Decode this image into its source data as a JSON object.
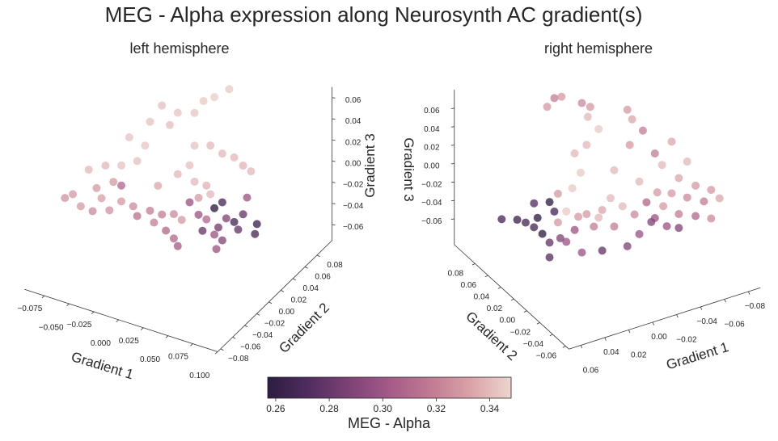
{
  "title": "MEG - Alpha expression along Neurosynth AC gradient(s)",
  "chart_data": [
    {
      "type": "scatter3d",
      "title": "left hemisphere",
      "xlabel": "Gradient 1",
      "ylabel": "Gradient 2",
      "zlabel": "Gradient 3",
      "x_ticks": [
        "−0.075",
        "−0.050",
        "−0.025",
        "0.000",
        "0.025",
        "0.050",
        "0.075",
        "0.100"
      ],
      "x_tick_values": [
        -0.075,
        -0.05,
        -0.025,
        0,
        0.025,
        0.05,
        0.075,
        0.1
      ],
      "y_ticks": [
        "−0.08",
        "−0.06",
        "−0.04",
        "−0.02",
        "0.00",
        "0.02",
        "0.04",
        "0.06",
        "0.08"
      ],
      "y_tick_values": [
        -0.08,
        -0.06,
        -0.04,
        -0.02,
        0,
        0.02,
        0.04,
        0.06,
        0.08
      ],
      "z_ticks": [
        "−0.06",
        "−0.04",
        "−0.02",
        "0.00",
        "0.02",
        "0.04",
        "0.06"
      ],
      "z_tick_values": [
        -0.06,
        -0.04,
        -0.02,
        0,
        0.02,
        0.04,
        0.06
      ],
      "xlim": [
        -0.095,
        0.1
      ],
      "ylim": [
        -0.085,
        0.105
      ],
      "zlim": [
        -0.075,
        0.07
      ],
      "point_fields": [
        "gradient1",
        "gradient2",
        "gradient3",
        "meg_alpha"
      ],
      "points": [
        [
          0.06,
          0,
          0.114,
          0.345
        ],
        [
          0.045,
          0,
          0.102,
          0.346
        ],
        [
          0.034,
          0,
          0.095,
          0.345
        ],
        [
          0.025,
          0,
          0.081,
          0.344
        ],
        [
          0.008,
          0,
          0.076,
          0.343
        ],
        [
          -0.008,
          0,
          0.078,
          0.342
        ],
        [
          -0.02,
          0,
          0.059,
          0.343
        ],
        [
          0,
          0,
          0.062,
          0.342
        ],
        [
          -0.025,
          0,
          0.035,
          0.344
        ],
        [
          -0.041,
          0,
          0.038,
          0.343
        ],
        [
          -0.033,
          0,
          0.018,
          0.342
        ],
        [
          -0.049,
          0,
          0.009,
          0.343
        ],
        [
          0.025,
          0,
          0.05,
          0.343
        ],
        [
          0.041,
          0,
          0.055,
          0.341
        ],
        [
          0.053,
          0,
          0.051,
          0.34
        ],
        [
          0.065,
          0,
          0.051,
          0.34
        ],
        [
          0.074,
          0,
          0.046,
          0.339
        ],
        [
          0.02,
          0,
          0.03,
          0.342
        ],
        [
          0.008,
          0,
          0.018,
          0.34
        ],
        [
          0.037,
          0,
          0.016,
          0.338
        ],
        [
          -0.065,
          0,
          0.004,
          0.34
        ],
        [
          -0.082,
          0,
          -0.005,
          0.34
        ],
        [
          -0.057,
          0,
          -0.009,
          0.33
        ],
        [
          -0.069,
          0,
          -0.028,
          0.332
        ],
        [
          -0.098,
          0,
          -0.033,
          0.33
        ],
        [
          -0.106,
          0,
          -0.039,
          0.328
        ],
        [
          -0.09,
          0,
          -0.042,
          0.33
        ],
        [
          -0.078,
          0,
          -0.043,
          0.325
        ],
        [
          -0.061,
          0,
          -0.037,
          0.328
        ],
        [
          -0.049,
          0,
          -0.025,
          0.33
        ],
        [
          -0.037,
          0,
          -0.026,
          0.325
        ],
        [
          -0.02,
          0,
          -0.025,
          0.32
        ],
        [
          -0.008,
          0,
          -0.025,
          0.32
        ],
        [
          0.004,
          0,
          -0.021,
          0.325
        ],
        [
          0.012,
          0,
          -0.024,
          0.33
        ],
        [
          -0.016,
          0,
          -0.035,
          0.32
        ],
        [
          -0.033,
          0,
          -0.034,
          0.315
        ],
        [
          -0.049,
          0,
          -0.01,
          0.31
        ],
        [
          -0.012,
          0,
          0.001,
          0.335
        ],
        [
          0.041,
          0,
          0.009,
          0.34
        ],
        [
          0.053,
          0,
          0.005,
          0.27
        ],
        [
          0.045,
          0,
          -0.003,
          0.258
        ],
        [
          0.057,
          0,
          -0.009,
          0.29
        ],
        [
          0.065,
          0,
          -0.01,
          0.27
        ],
        [
          0.074,
          0,
          0.0,
          0.28
        ],
        [
          0.069,
          0,
          -0.016,
          0.28
        ],
        [
          0.088,
          0,
          -0.005,
          0.265
        ],
        [
          0.086,
          0,
          -0.015,
          0.27
        ],
        [
          0.029,
          0,
          -0.014,
          0.3
        ],
        [
          0.037,
          0,
          -0.016,
          0.31
        ],
        [
          0.045,
          0,
          -0.028,
          0.3
        ],
        [
          0.053,
          0,
          -0.031,
          0.29
        ],
        [
          0.033,
          0,
          -0.028,
          0.28
        ],
        [
          0.004,
          0,
          -0.044,
          0.31
        ],
        [
          0.008,
          0,
          -0.05,
          0.305
        ],
        [
          0.047,
          0,
          -0.041,
          0.3
        ],
        [
          0.029,
          0,
          0.002,
          0.33
        ],
        [
          0.078,
          0,
          0.017,
          0.3
        ],
        [
          0.082,
          0,
          0.043,
          0.34
        ],
        [
          0.02,
          0,
          -0.005,
          0.3
        ],
        [
          0.049,
          0,
          -0.02,
          0.285
        ],
        [
          0.025,
          0,
          0.016,
          0.34
        ],
        [
          -0.074,
          0,
          -0.02,
          0.33
        ],
        [
          -0.004,
          0,
          -0.039,
          0.31
        ]
      ]
    },
    {
      "type": "scatter3d",
      "title": "right hemisphere",
      "xlabel": "Gradient 1",
      "ylabel": "Gradient 2",
      "zlabel": "Gradient 3",
      "x_ticks": [
        "−0.08",
        "−0.06",
        "−0.04",
        "−0.02",
        "0.00",
        "0.02",
        "0.04",
        "0.06"
      ],
      "x_tick_values": [
        -0.08,
        -0.06,
        -0.04,
        -0.02,
        0,
        0.02,
        0.04,
        0.06
      ],
      "y_ticks": [
        "−0.06",
        "−0.04",
        "−0.02",
        "0.00",
        "0.02",
        "0.04",
        "0.06",
        "0.08"
      ],
      "y_tick_values": [
        -0.06,
        -0.04,
        -0.02,
        0,
        0.02,
        0.04,
        0.06,
        0.08
      ],
      "z_ticks": [
        "−0.06",
        "−0.04",
        "−0.02",
        "0.00",
        "0.02",
        "0.04",
        "0.06"
      ],
      "z_tick_values": [
        -0.06,
        -0.04,
        -0.02,
        0,
        0.02,
        0.04,
        0.06
      ],
      "xlim": [
        -0.09,
        0.07
      ],
      "ylim": [
        -0.065,
        0.112
      ],
      "zlim": [
        -0.088,
        0.08
      ],
      "point_fields": [
        "gradient1",
        "gradient2",
        "gradient3",
        "meg_alpha"
      ],
      "points": [
        [
          0.047,
          0,
          0.133,
          0.32
        ],
        [
          0.041,
          0,
          0.132,
          0.33
        ],
        [
          0.053,
          0,
          0.126,
          0.33
        ],
        [
          0.024,
          0,
          0.118,
          0.325
        ],
        [
          0.017,
          0,
          0.111,
          0.33
        ],
        [
          0.019,
          0,
          0.101,
          0.34
        ],
        [
          -0.014,
          0,
          0.095,
          0.33
        ],
        [
          -0.018,
          0,
          0.083,
          0.335
        ],
        [
          -0.027,
          0,
          0.067,
          0.32
        ],
        [
          -0.051,
          0,
          0.045,
          0.335
        ],
        [
          -0.037,
          0,
          0.038,
          0.32
        ],
        [
          -0.016,
          0,
          0.056,
          0.33
        ],
        [
          0.01,
          0,
          0.084,
          0.345
        ],
        [
          0.02,
          0,
          0.071,
          0.34
        ],
        [
          0.03,
          0,
          0.066,
          0.34
        ],
        [
          0.025,
          0,
          0.043,
          0.345
        ],
        [
          0.032,
          0,
          0.029,
          0.345
        ],
        [
          -0.003,
          0,
          0.034,
          0.34
        ],
        [
          -0.043,
          0,
          0.023,
          0.34
        ],
        [
          -0.024,
          0,
          0.013,
          0.34
        ],
        [
          -0.064,
          0,
          0.018,
          0.34
        ],
        [
          -0.057,
          0,
          0.003,
          0.335
        ],
        [
          -0.071,
          0,
          -0.011,
          0.33
        ],
        [
          -0.084,
          0,
          -0.021,
          0.33
        ],
        [
          -0.091,
          0,
          -0.033,
          0.335
        ],
        [
          -0.078,
          0,
          -0.031,
          0.32
        ],
        [
          -0.064,
          0,
          -0.021,
          0.325
        ],
        [
          -0.051,
          0,
          -0.011,
          0.33
        ],
        [
          -0.039,
          0,
          -0.005,
          0.33
        ],
        [
          -0.03,
          0,
          -0.012,
          0.31
        ],
        [
          -0.044,
          0,
          -0.022,
          0.33
        ],
        [
          -0.057,
          0,
          -0.036,
          0.32
        ],
        [
          -0.071,
          0,
          -0.044,
          0.31
        ],
        [
          -0.084,
          0,
          -0.052,
          0.325
        ],
        [
          -0.037,
          0,
          -0.032,
          0.3
        ],
        [
          -0.02,
          0,
          -0.021,
          0.325
        ],
        [
          -0.01,
          0,
          -0.008,
          0.34
        ],
        [
          0,
          0,
          0.005,
          0.34
        ],
        [
          0.007,
          0,
          -0.005,
          0.335
        ],
        [
          0.01,
          0,
          -0.012,
          0.34
        ],
        [
          0.02,
          0,
          -0.004,
          0.33
        ],
        [
          0.014,
          0,
          -0.02,
          0.32
        ],
        [
          -0.003,
          0,
          -0.027,
          0.32
        ],
        [
          -0.024,
          0,
          -0.044,
          0.3
        ],
        [
          -0.034,
          0,
          -0.035,
          0.29
        ],
        [
          -0.047,
          0,
          -0.045,
          0.3
        ],
        [
          -0.057,
          0,
          -0.051,
          0.29
        ],
        [
          -0.014,
          0,
          -0.053,
          0.29
        ],
        [
          0.007,
          0,
          -0.049,
          0.28
        ],
        [
          0.024,
          0,
          -0.044,
          0.3
        ],
        [
          0.037,
          0,
          -0.027,
          0.3
        ],
        [
          0.044,
          0,
          -0.003,
          0.33
        ],
        [
          0.047,
          0,
          0.01,
          0.27
        ],
        [
          0.051,
          0,
          0.022,
          0.26
        ],
        [
          0.061,
          0,
          0.009,
          0.26
        ],
        [
          0.071,
          0,
          0.008,
          0.27
        ],
        [
          0.078,
          0,
          0.014,
          0.265
        ],
        [
          0.091,
          0,
          0.02,
          0.27
        ],
        [
          0.064,
          0,
          0.0,
          0.27
        ],
        [
          0.057,
          0,
          -0.01,
          0.26
        ],
        [
          0.051,
          0,
          -0.022,
          0.28
        ],
        [
          0.051,
          0,
          -0.038,
          0.275
        ],
        [
          0.042,
          0,
          -0.021,
          0.29
        ],
        [
          0.03,
          0,
          -0.017,
          0.3
        ],
        [
          0.027,
          0,
          -0.004,
          0.33
        ],
        [
          0.064,
          0,
          0.026,
          0.275
        ],
        [
          0.037,
          0,
          0.006,
          0.345
        ],
        [
          0.044,
          0,
          0.028,
          0.33
        ]
      ]
    }
  ],
  "colorbar": {
    "label": "MEG - Alpha",
    "range": [
      0.257,
      0.348
    ],
    "ticks": [
      "0.26",
      "0.28",
      "0.30",
      "0.32",
      "0.34"
    ],
    "tick_values": [
      0.26,
      0.28,
      0.3,
      0.32,
      0.34
    ],
    "colors": [
      "#2c1d3f",
      "#4f2d5f",
      "#7d4275",
      "#a45a87",
      "#c07a93",
      "#dba2a8",
      "#ecd5cf"
    ]
  }
}
